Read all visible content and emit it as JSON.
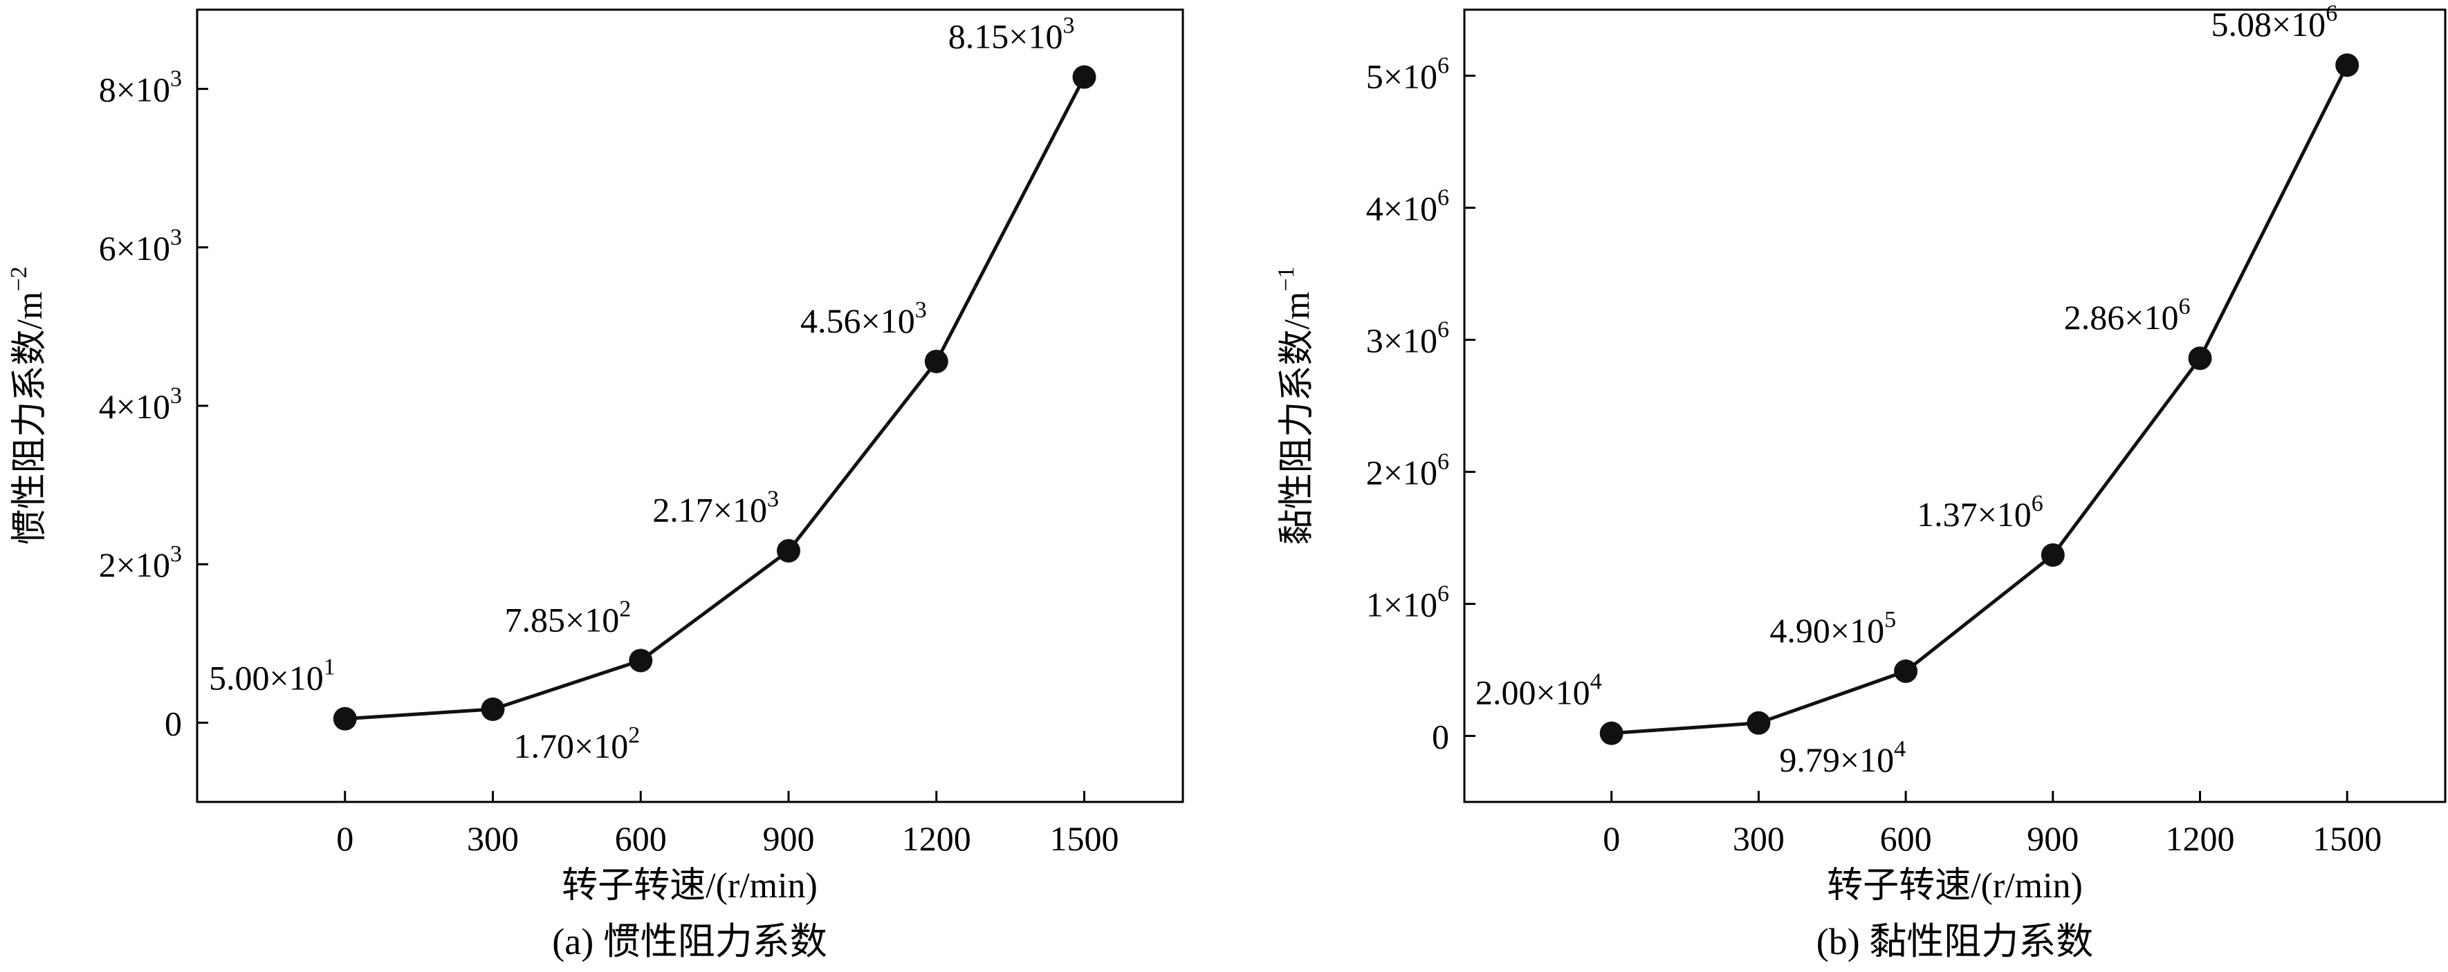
{
  "chart_data": [
    {
      "type": "line",
      "caption": "(a) 惯性阻力系数",
      "xlabel": "转子转速/(r/min)",
      "ylabel_base": "惯性阻力系数/m",
      "ylabel_exp": "−2",
      "x": [
        0,
        300,
        600,
        900,
        1200,
        1500
      ],
      "xticks": [
        "0",
        "300",
        "600",
        "900",
        "1200",
        "1500"
      ],
      "xlim": [
        -300,
        1700
      ],
      "ylim": [
        -1000,
        9000
      ],
      "yticks": [
        {
          "value": 0,
          "base": "0",
          "exp": ""
        },
        {
          "value": 2000,
          "base": "2×10",
          "exp": "3"
        },
        {
          "value": 4000,
          "base": "4×10",
          "exp": "3"
        },
        {
          "value": 6000,
          "base": "6×10",
          "exp": "3"
        },
        {
          "value": 8000,
          "base": "8×10",
          "exp": "3"
        }
      ],
      "series": [
        {
          "values": [
            50,
            170,
            785,
            2170,
            4560,
            8150
          ],
          "point_labels": [
            {
              "base": "5.00×10",
              "exp": "1",
              "pos": "above-left"
            },
            {
              "base": "1.70×10",
              "exp": "2",
              "pos": "below-right"
            },
            {
              "base": "7.85×10",
              "exp": "2",
              "pos": "above-left"
            },
            {
              "base": "2.17×10",
              "exp": "3",
              "pos": "above-left"
            },
            {
              "base": "4.56×10",
              "exp": "3",
              "pos": "above-left"
            },
            {
              "base": "8.15×10",
              "exp": "3",
              "pos": "above-left"
            }
          ]
        }
      ],
      "grid": false,
      "colors": {
        "line": "#111111",
        "marker": "#111111",
        "axis": "#000000"
      }
    },
    {
      "type": "line",
      "caption": "(b) 黏性阻力系数",
      "xlabel": "转子转速/(r/min)",
      "ylabel_base": "黏性阻力系数/m",
      "ylabel_exp": "−1",
      "x": [
        0,
        300,
        600,
        900,
        1200,
        1500
      ],
      "xticks": [
        "0",
        "300",
        "600",
        "900",
        "1200",
        "1500"
      ],
      "xlim": [
        -300,
        1700
      ],
      "ylim": [
        -500000,
        5500000
      ],
      "yticks": [
        {
          "value": 0,
          "base": "0",
          "exp": ""
        },
        {
          "value": 1000000,
          "base": "1×10",
          "exp": "6"
        },
        {
          "value": 2000000,
          "base": "2×10",
          "exp": "6"
        },
        {
          "value": 3000000,
          "base": "3×10",
          "exp": "6"
        },
        {
          "value": 4000000,
          "base": "4×10",
          "exp": "6"
        },
        {
          "value": 5000000,
          "base": "5×10",
          "exp": "6"
        }
      ],
      "series": [
        {
          "values": [
            20000,
            97900,
            490000,
            1370000,
            2860000,
            5080000
          ],
          "point_labels": [
            {
              "base": "2.00×10",
              "exp": "4",
              "pos": "above-left"
            },
            {
              "base": "9.79×10",
              "exp": "4",
              "pos": "below-right"
            },
            {
              "base": "4.90×10",
              "exp": "5",
              "pos": "above-left"
            },
            {
              "base": "1.37×10",
              "exp": "6",
              "pos": "above-left"
            },
            {
              "base": "2.86×10",
              "exp": "6",
              "pos": "above-left"
            },
            {
              "base": "5.08×10",
              "exp": "6",
              "pos": "above-left"
            }
          ]
        }
      ],
      "grid": false,
      "colors": {
        "line": "#111111",
        "marker": "#111111",
        "axis": "#000000"
      }
    }
  ]
}
